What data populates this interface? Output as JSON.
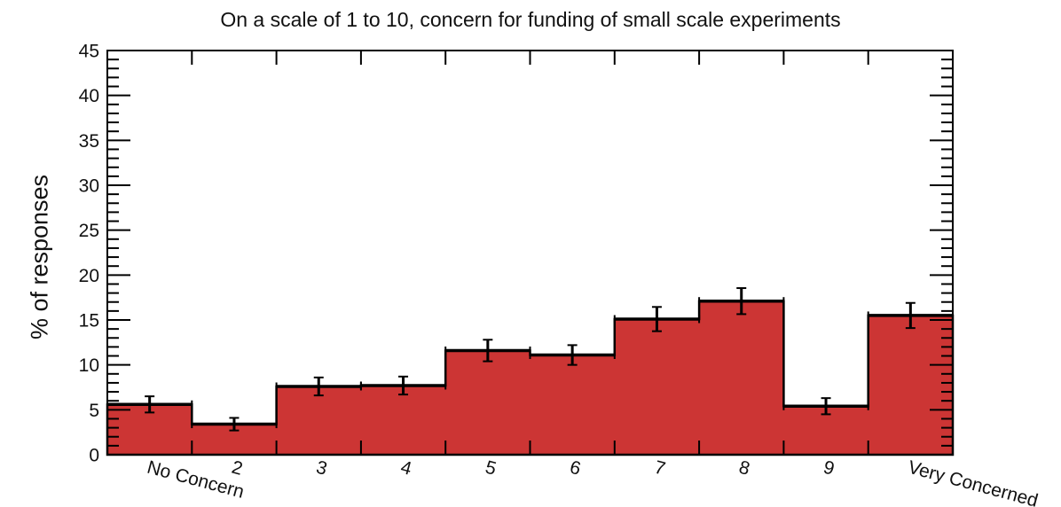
{
  "page": {
    "background_color": "#ffffff"
  },
  "chart_data": {
    "type": "bar",
    "title": "On a scale of 1 to 10, concern for funding of small scale experiments",
    "xlabel": "",
    "ylabel": "% of responses",
    "categories": [
      "No Concern",
      "2",
      "3",
      "4",
      "5",
      "6",
      "7",
      "8",
      "9",
      "Very Concerned"
    ],
    "values": [
      5.6,
      3.4,
      7.6,
      7.7,
      11.6,
      11.1,
      15.1,
      17.1,
      5.4,
      15.5
    ],
    "errors": [
      0.9,
      0.7,
      1.0,
      1.0,
      1.2,
      1.1,
      1.35,
      1.45,
      0.9,
      1.4
    ],
    "ylim": [
      0,
      45
    ],
    "y_major_step": 5,
    "y_minor_step": 1,
    "y_tick_labels": [
      "0",
      "5",
      "10",
      "15",
      "20",
      "25",
      "30",
      "35",
      "40",
      "45"
    ],
    "grid": false,
    "legend": null,
    "bar_color": "#cc3534",
    "bar_edge_color": "#000000",
    "error_color": "#000000",
    "axis_color": "#000000",
    "text_color": "#111111",
    "x_label_rotation_deg": 15
  }
}
